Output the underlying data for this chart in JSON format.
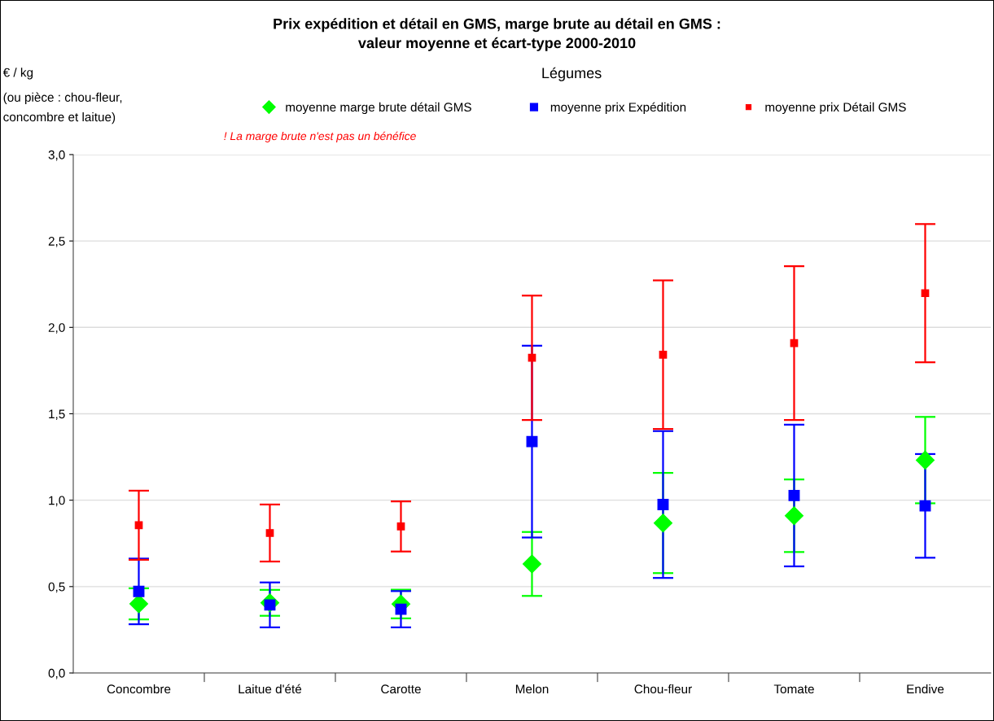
{
  "chart_data": {
    "type": "scatter",
    "title": "Prix expédition et détail en GMS, marge brute au détail en GMS :\nvaleur moyenne et écart-type 2000-2010",
    "subtitle": "Légumes",
    "annotations": [
      "€ / kg",
      "(ou pièce : chou-fleur,\nconcombre et laitue)",
      "! La marge brute n'est pas un bénéfice"
    ],
    "categories": [
      "Concombre",
      "Laitue d'été",
      "Carotte",
      "Melon",
      "Chou-fleur",
      "Tomate",
      "Endive"
    ],
    "series": [
      {
        "name": "moyenne marge brute détail GMS",
        "color": "#00ff00",
        "marker": "diamond",
        "values": [
          0.4,
          0.406,
          0.399,
          0.631,
          0.868,
          0.91,
          1.232
        ],
        "errors": [
          0.09,
          0.075,
          0.083,
          0.185,
          0.29,
          0.21,
          0.25
        ]
      },
      {
        "name": "moyenne prix Expédition",
        "color": "#0000ff",
        "marker": "square",
        "values": [
          0.472,
          0.394,
          0.369,
          1.339,
          0.975,
          1.027,
          0.967
        ],
        "errors": [
          0.19,
          0.13,
          0.105,
          0.555,
          0.425,
          0.41,
          0.3
        ]
      },
      {
        "name": "moyenne prix Détail GMS",
        "color": "#ff0000",
        "marker": "square",
        "values": [
          0.855,
          0.81,
          0.848,
          1.824,
          1.842,
          1.909,
          2.198
        ],
        "errors": [
          0.2,
          0.165,
          0.145,
          0.36,
          0.43,
          0.445,
          0.4
        ]
      }
    ],
    "ylim": [
      0,
      3
    ],
    "yticks": [
      {
        "value": 0,
        "label": "0,0"
      },
      {
        "value": 0.5,
        "label": "0,5"
      },
      {
        "value": 1,
        "label": "1,0"
      },
      {
        "value": 1.5,
        "label": "1,5"
      },
      {
        "value": 2,
        "label": "2,0"
      },
      {
        "value": 2.5,
        "label": "2,5"
      },
      {
        "value": 3,
        "label": "3,0"
      }
    ],
    "grid": "y",
    "legend": "top"
  }
}
